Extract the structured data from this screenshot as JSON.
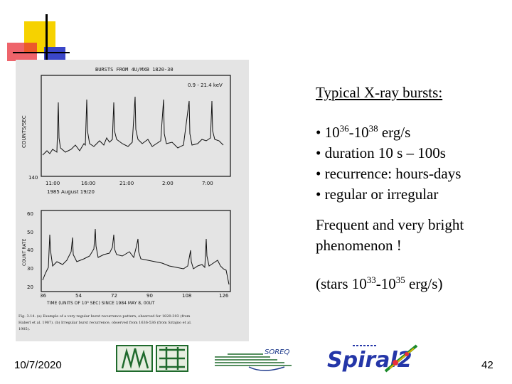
{
  "slide": {
    "heading": "Typical X-ray bursts:",
    "bullets": [
      {
        "bullet": "•",
        "text_before": " 10",
        "sup1": "36",
        "mid": "-10",
        "sup2": "38",
        "after": " erg/s"
      },
      {
        "bullet": "•",
        "text": " duration 10 s – 100s"
      },
      {
        "bullet": "•",
        "text": " recurrence: hours-days"
      },
      {
        "bullet": "•",
        "text": " regular or irregular"
      }
    ],
    "para1_line1": "Frequent and very bright",
    "para1_line2": "phenomenon !",
    "para2": {
      "before": "(stars 10",
      "sup1": "33",
      "mid": "-10",
      "sup2": "35",
      "after": " erg/s)"
    }
  },
  "footer": {
    "date": "10/7/2020",
    "page": "42",
    "soreq_text": "SOREQ",
    "spiral_text": "Spiral2"
  },
  "figure": {
    "top_title": "BURSTS FROM 4U/MXB 1820-30",
    "energy": "0.9 - 21.4 keV",
    "top_ylabel": "COUNTS/SEC",
    "top_ymin": "140",
    "top_xticks": [
      "11:00",
      "16:00",
      "21:00",
      "2:00",
      "7:00"
    ],
    "date_label": "1985 August 19/20",
    "bot_ylabel": "COUNT RATE",
    "bot_yticks": [
      "60",
      "50",
      "40",
      "30",
      "20"
    ],
    "bot_xticks": [
      "36",
      "54",
      "72",
      "90",
      "108",
      "126"
    ],
    "bot_xlabel": "TIME (UNITS OF 10³ SEC) SINCE 1984 MAY 8, 00UT",
    "caption_lines": [
      "Fig. 3.14.   (a)  Example of a very regular burst recurrence pattern, observed for 1820-303 (from",
      "Haberl et al. 1987). (b) Irregular burst recurrence, observed from 1636-536 (from Sztajno et al.",
      "1985)."
    ]
  },
  "colors": {
    "accent_yellow": "#f6d200",
    "accent_blue": "#3a46c8",
    "accent_red": "#e8303a",
    "figure_bg": "#e4e4e4"
  }
}
